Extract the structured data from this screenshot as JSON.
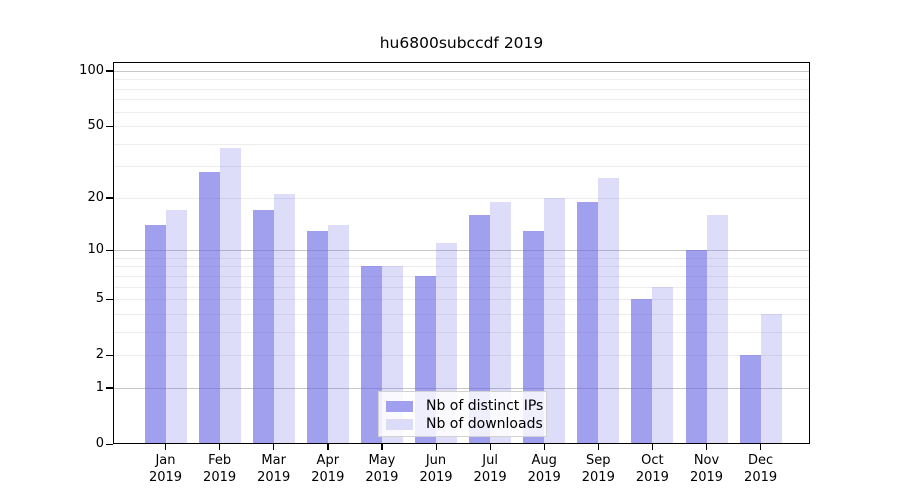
{
  "title": "hu6800subccdf 2019",
  "chart_data": {
    "type": "bar",
    "title": "hu6800subccdf 2019",
    "categories": [
      "Jan",
      "Feb",
      "Mar",
      "Apr",
      "May",
      "Jun",
      "Jul",
      "Aug",
      "Sep",
      "Oct",
      "Nov",
      "Dec"
    ],
    "x_year": "2019",
    "series": [
      {
        "name": "Nb of distinct IPs",
        "color": "#a0a0ee",
        "fill": "rgba(101,101,228,0.62)",
        "values": [
          14,
          28,
          17,
          13,
          8,
          7,
          16,
          13,
          19,
          5,
          10,
          2
        ]
      },
      {
        "name": "Nb of downloads",
        "color": "#dcdcf8",
        "fill": "rgba(101,101,228,0.22)",
        "values": [
          17,
          38,
          21,
          14,
          8,
          11,
          19,
          20,
          26,
          6,
          16,
          4
        ]
      }
    ],
    "y_ticks": [
      0,
      1,
      2,
      5,
      10,
      20,
      50,
      100
    ],
    "y_scale": "log10(value+1)",
    "ylim": [
      0,
      112
    ],
    "grid": {
      "minor_color": "#ececec",
      "major_color": "#c6c6c6",
      "major_at": [
        1,
        10,
        100
      ],
      "minor_at": [
        2,
        3,
        4,
        5,
        6,
        7,
        8,
        9,
        20,
        30,
        40,
        50,
        60,
        70,
        80,
        90
      ]
    },
    "legend_position": "bottom-center"
  }
}
